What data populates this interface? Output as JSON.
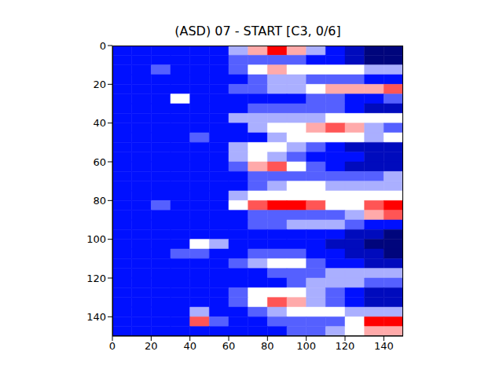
{
  "chart_data": {
    "type": "heatmap",
    "title": "(ASD) 07 - START [C3, 0/6]",
    "xlim": [
      0,
      150
    ],
    "ylim": [
      150,
      0
    ],
    "xticks": [
      0,
      20,
      40,
      60,
      80,
      100,
      120,
      140
    ],
    "yticks": [
      0,
      20,
      40,
      60,
      80,
      100,
      120,
      140
    ],
    "color_range": [
      0,
      9
    ],
    "cells": [
      [
        3,
        3,
        3,
        3,
        3,
        3,
        5,
        7,
        9,
        7,
        5,
        3,
        2,
        1,
        1
      ],
      [
        3,
        3,
        3,
        3,
        3,
        3,
        4,
        4,
        4,
        4,
        3,
        3,
        2,
        1,
        1
      ],
      [
        3,
        3,
        4,
        3,
        3,
        3,
        4,
        6,
        7,
        6,
        6,
        6,
        6,
        5,
        5
      ],
      [
        3,
        3,
        3,
        3,
        3,
        3,
        3,
        4,
        5,
        5,
        4,
        4,
        4,
        3,
        3
      ],
      [
        3,
        3,
        3,
        3,
        3,
        3,
        4,
        4,
        5,
        5,
        6,
        7,
        7,
        7,
        8
      ],
      [
        3,
        3,
        3,
        6,
        3,
        3,
        3,
        3,
        3,
        3,
        4,
        4,
        3,
        3,
        4
      ],
      [
        3,
        3,
        3,
        3,
        3,
        3,
        3,
        4,
        4,
        4,
        4,
        4,
        3,
        2,
        2
      ],
      [
        3,
        3,
        3,
        3,
        3,
        3,
        5,
        5,
        5,
        5,
        5,
        6,
        6,
        6,
        6
      ],
      [
        3,
        3,
        3,
        3,
        3,
        3,
        3,
        5,
        6,
        6,
        7,
        8,
        7,
        5,
        4
      ],
      [
        3,
        3,
        3,
        3,
        4,
        3,
        3,
        3,
        5,
        6,
        6,
        6,
        6,
        5,
        6
      ],
      [
        3,
        3,
        3,
        3,
        3,
        3,
        5,
        6,
        6,
        5,
        4,
        3,
        2,
        2,
        2
      ],
      [
        3,
        3,
        3,
        3,
        3,
        3,
        5,
        6,
        5,
        4,
        3,
        3,
        3,
        2,
        2
      ],
      [
        3,
        3,
        3,
        3,
        3,
        3,
        4,
        7,
        8,
        6,
        4,
        3,
        2,
        2,
        2
      ],
      [
        3,
        3,
        3,
        3,
        3,
        3,
        3,
        4,
        4,
        4,
        4,
        4,
        4,
        4,
        5
      ],
      [
        3,
        3,
        3,
        3,
        3,
        3,
        3,
        4,
        5,
        6,
        6,
        5,
        5,
        5,
        5
      ],
      [
        3,
        3,
        3,
        3,
        3,
        3,
        5,
        6,
        6,
        6,
        6,
        6,
        6,
        6,
        6
      ],
      [
        3,
        3,
        4,
        3,
        3,
        3,
        6,
        8,
        9,
        9,
        8,
        6,
        6,
        8,
        9
      ],
      [
        3,
        3,
        3,
        3,
        3,
        3,
        3,
        4,
        4,
        4,
        4,
        4,
        5,
        7,
        8
      ],
      [
        3,
        3,
        3,
        3,
        3,
        3,
        3,
        4,
        4,
        5,
        5,
        5,
        4,
        3,
        3
      ],
      [
        3,
        3,
        3,
        3,
        3,
        3,
        3,
        3,
        3,
        3,
        3,
        3,
        2,
        2,
        1
      ],
      [
        3,
        3,
        3,
        3,
        6,
        5,
        3,
        3,
        3,
        3,
        3,
        2,
        2,
        1,
        1
      ],
      [
        3,
        3,
        3,
        4,
        4,
        3,
        3,
        4,
        4,
        4,
        3,
        3,
        2,
        2,
        1
      ],
      [
        3,
        3,
        3,
        3,
        3,
        3,
        4,
        5,
        6,
        6,
        4,
        3,
        3,
        2,
        2
      ],
      [
        3,
        3,
        3,
        3,
        3,
        3,
        3,
        3,
        4,
        4,
        4,
        5,
        5,
        5,
        5
      ],
      [
        3,
        3,
        3,
        3,
        3,
        3,
        3,
        3,
        3,
        4,
        5,
        5,
        5,
        4,
        4
      ],
      [
        3,
        3,
        3,
        3,
        3,
        3,
        4,
        6,
        6,
        6,
        5,
        4,
        3,
        2,
        2
      ],
      [
        3,
        3,
        3,
        3,
        3,
        3,
        4,
        6,
        8,
        7,
        5,
        4,
        3,
        2,
        2
      ],
      [
        3,
        3,
        3,
        3,
        5,
        3,
        3,
        4,
        5,
        6,
        6,
        6,
        5,
        5,
        5
      ],
      [
        3,
        3,
        3,
        3,
        8,
        4,
        3,
        3,
        4,
        4,
        4,
        4,
        6,
        9,
        9
      ],
      [
        3,
        3,
        3,
        3,
        3,
        3,
        3,
        3,
        3,
        4,
        4,
        5,
        6,
        7,
        7
      ]
    ]
  }
}
